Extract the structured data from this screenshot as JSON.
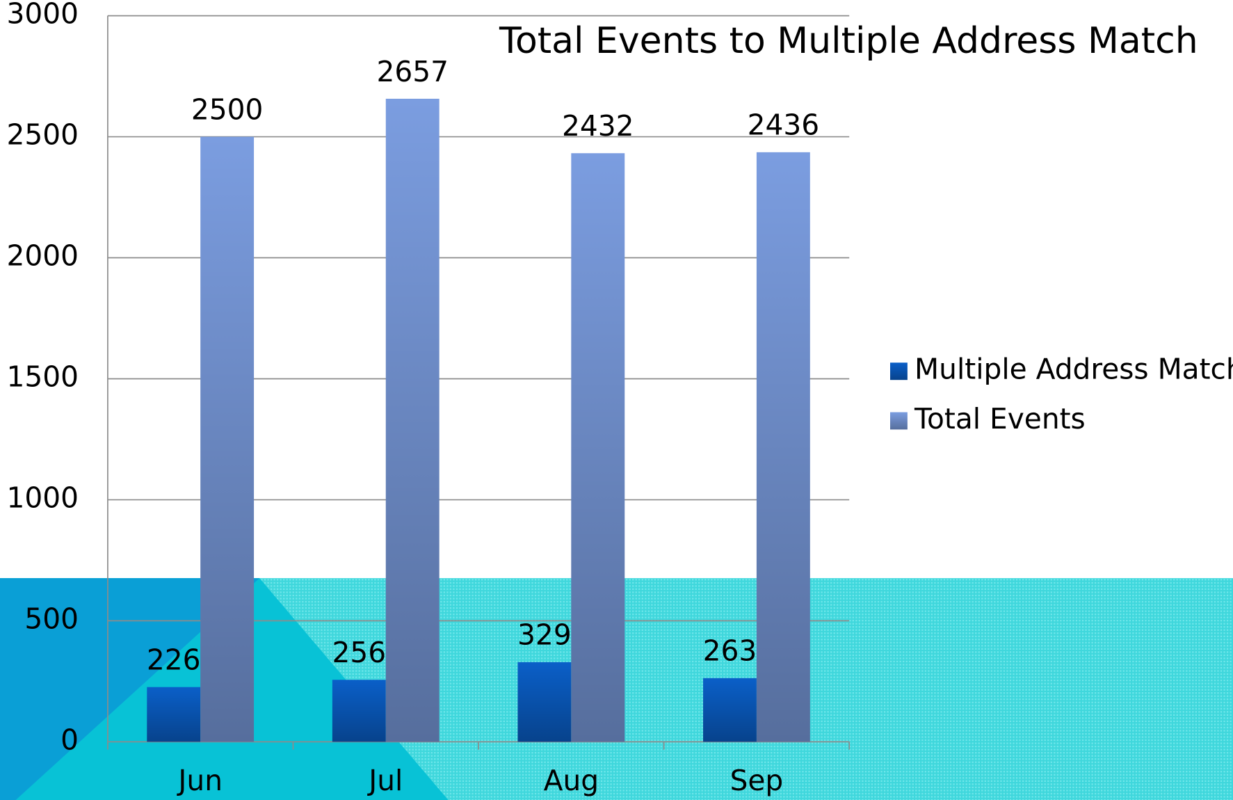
{
  "chart_data": {
    "type": "bar",
    "title": "Total Events to Multiple Address Match",
    "categories": [
      "Jun",
      "Jul",
      "Aug",
      "Sep"
    ],
    "series": [
      {
        "name": "Multiple Address Match",
        "color": "#0a5fc8",
        "values": [
          226,
          256,
          329,
          263
        ]
      },
      {
        "name": "Total Events",
        "color": "#7b9de0",
        "values": [
          2500,
          2657,
          2432,
          2436
        ]
      }
    ],
    "ylim": [
      0,
      3000
    ],
    "yticks": [
      0,
      500,
      1000,
      1500,
      2000,
      2500,
      3000
    ],
    "grid": true,
    "legend": "right"
  }
}
